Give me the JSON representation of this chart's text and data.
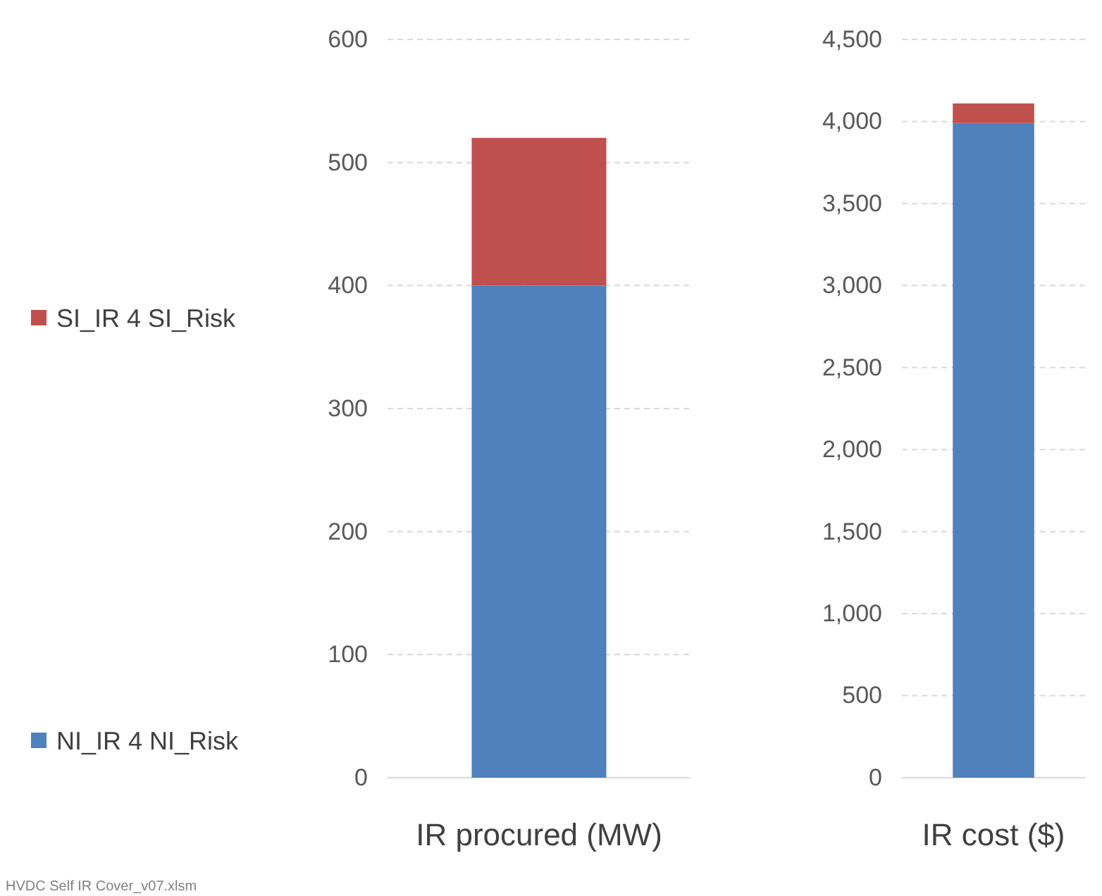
{
  "chart_data": [
    {
      "type": "bar",
      "stacked": true,
      "xlabel": "IR procured (MW)",
      "categories": [
        null
      ],
      "ylim": [
        0,
        600
      ],
      "yticks": [
        0,
        100,
        200,
        300,
        400,
        500,
        600
      ],
      "grid": "y",
      "legend": "left",
      "series": [
        {
          "name": "NI_IR 4 NI_Risk",
          "color": "#4f81bd",
          "values": [
            400
          ]
        },
        {
          "name": "SI_IR 4 SI_Risk",
          "color": "#c0504d",
          "values": [
            120
          ]
        }
      ],
      "annotations": [
        "HVDC Self IR Cover_v07.xlsm"
      ]
    },
    {
      "type": "bar",
      "stacked": true,
      "xlabel": "IR cost ($)",
      "categories": [
        null
      ],
      "ylim": [
        0,
        4500
      ],
      "yticks": [
        {
          "value": 0,
          "label": "0"
        },
        {
          "value": 500,
          "label": "500"
        },
        {
          "value": 1000,
          "label": "1,000"
        },
        {
          "value": 1500,
          "label": "1,500"
        },
        {
          "value": 2000,
          "label": "2,000"
        },
        {
          "value": 2500,
          "label": "2,500"
        },
        {
          "value": 3000,
          "label": "3,000"
        },
        {
          "value": 3500,
          "label": "3,500"
        },
        {
          "value": 4000,
          "label": "4,000"
        },
        {
          "value": 4500,
          "label": "4,500"
        }
      ],
      "grid": "y",
      "series": [
        {
          "color": "#4f81bd",
          "values": [
            3990
          ]
        },
        {
          "color": "#c0504d",
          "values": [
            120
          ]
        }
      ]
    }
  ]
}
